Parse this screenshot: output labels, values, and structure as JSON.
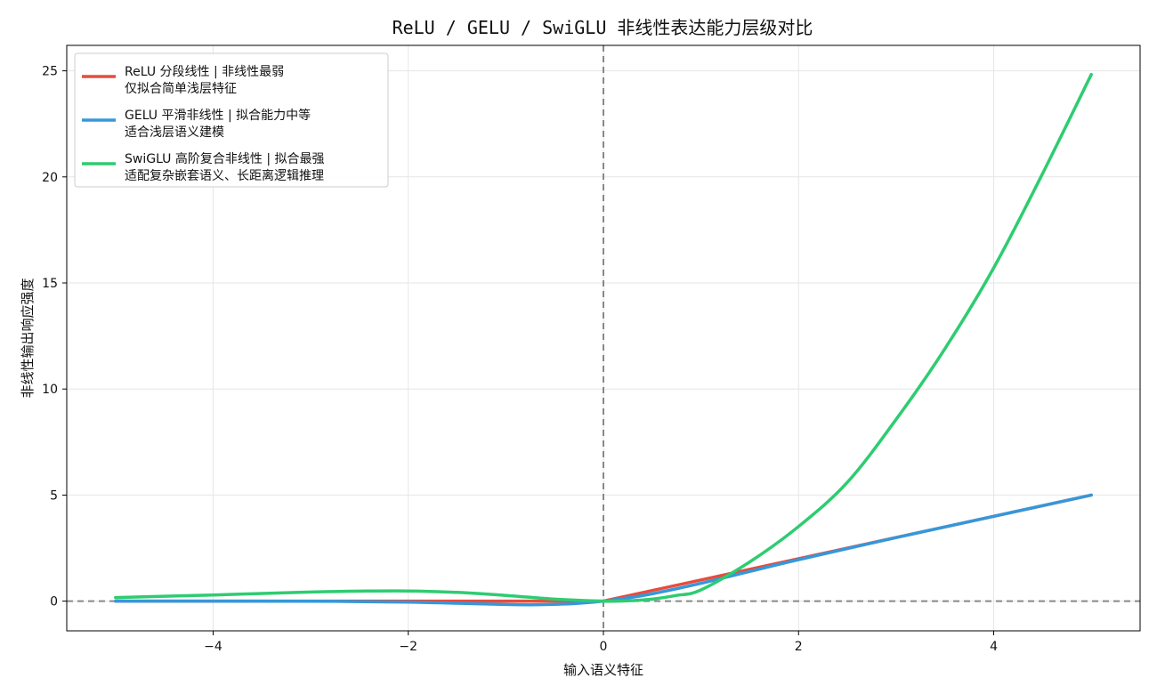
{
  "chart_data": {
    "type": "line",
    "title": "ReLU / GELU / SwiGLU 非线性表达能力层级对比",
    "xlabel": "输入语义特征",
    "ylabel": "非线性输出响应强度",
    "xlim": [
      -5.5,
      5.5
    ],
    "ylim": [
      -1.4,
      26.2
    ],
    "xticks": [
      -4,
      -2,
      0,
      2,
      4
    ],
    "yticks": [
      0,
      5,
      10,
      15,
      20,
      25
    ],
    "grid": true,
    "legend_position": "upper-left",
    "reference_lines": [
      {
        "orientation": "horizontal",
        "value": 0,
        "style": "dashed",
        "color": "#888888"
      },
      {
        "orientation": "vertical",
        "value": 0,
        "style": "dashed",
        "color": "#888888"
      }
    ],
    "series": [
      {
        "name": "ReLU 分段线性 | 非线性最弱\n仅拟合简单浅层特征",
        "color": "#e74c3c",
        "x": [
          -5,
          -4,
          -3,
          -2,
          -1,
          0,
          1,
          2,
          3,
          4,
          5
        ],
        "y": [
          0,
          0,
          0,
          0,
          0,
          0,
          1,
          2,
          3,
          4,
          5
        ]
      },
      {
        "name": "GELU 平滑非线性 | 拟合能力中等\n适合浅层语义建模",
        "color": "#3498db",
        "x": [
          -5,
          -4,
          -3,
          -2,
          -1.5,
          -1,
          -0.75,
          -0.5,
          -0.25,
          0,
          0.25,
          0.5,
          1,
          1.5,
          2,
          3,
          4,
          5
        ],
        "y": [
          0,
          0,
          -0.004,
          -0.045,
          -0.1,
          -0.159,
          -0.17,
          -0.154,
          -0.1,
          0,
          0.15,
          0.346,
          0.841,
          1.4,
          1.955,
          2.996,
          4.0,
          5.0
        ]
      },
      {
        "name": "SwiGLU 高阶复合非线性 | 拟合最强\n适配复杂嵌套语义、长距离逻辑推理",
        "color": "#2ecc71",
        "x": [
          -5,
          -4,
          -3,
          -2.5,
          -2,
          -1.5,
          -1,
          -0.5,
          0,
          0.25,
          0.5,
          0.75,
          1,
          1.5,
          2,
          2.5,
          3,
          3.5,
          4,
          4.5,
          5
        ],
        "y": [
          0.17,
          0.29,
          0.43,
          0.47,
          0.48,
          0.41,
          0.27,
          0.095,
          0,
          0.015,
          0.095,
          0.27,
          0.53,
          1.85,
          3.52,
          5.6,
          8.57,
          11.9,
          15.71,
          20.15,
          24.83
        ]
      }
    ]
  }
}
